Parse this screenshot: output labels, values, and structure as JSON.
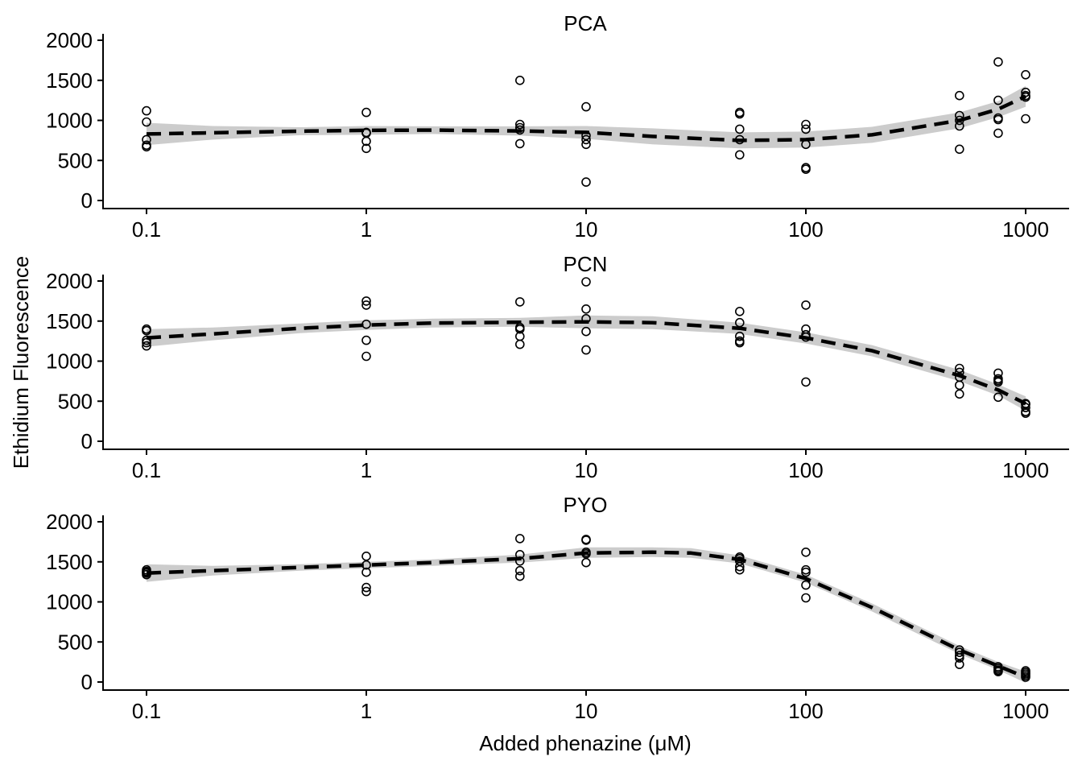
{
  "chart_data": {
    "type": "scatter",
    "xlabel": "Added phenazine (μM)",
    "ylabel": "Ethidium Fluorescence",
    "x_scale": "log10",
    "xlim": [
      0.1,
      1000
    ],
    "ylim": [
      0,
      2000
    ],
    "x_ticks": [
      "0.1",
      "1",
      "10",
      "100",
      "1000"
    ],
    "y_ticks": [
      "0",
      "500",
      "1000",
      "1500",
      "2000"
    ],
    "grid": false,
    "legend": "none",
    "colors": {
      "points": "#000000",
      "fit_line": "#000000",
      "ribbon": "#cccccc"
    },
    "panels": [
      {
        "title": "PCA",
        "points": [
          {
            "x": 0.1,
            "y": 1120
          },
          {
            "x": 0.1,
            "y": 980
          },
          {
            "x": 0.1,
            "y": 760
          },
          {
            "x": 0.1,
            "y": 690
          },
          {
            "x": 0.1,
            "y": 670
          },
          {
            "x": 1,
            "y": 1100
          },
          {
            "x": 1,
            "y": 850
          },
          {
            "x": 1,
            "y": 840
          },
          {
            "x": 1,
            "y": 740
          },
          {
            "x": 1,
            "y": 650
          },
          {
            "x": 5,
            "y": 1500
          },
          {
            "x": 5,
            "y": 950
          },
          {
            "x": 5,
            "y": 910
          },
          {
            "x": 5,
            "y": 880
          },
          {
            "x": 5,
            "y": 710
          },
          {
            "x": 10,
            "y": 1170
          },
          {
            "x": 10,
            "y": 810
          },
          {
            "x": 10,
            "y": 760
          },
          {
            "x": 10,
            "y": 700
          },
          {
            "x": 10,
            "y": 230
          },
          {
            "x": 50,
            "y": 1100
          },
          {
            "x": 50,
            "y": 1080
          },
          {
            "x": 50,
            "y": 890
          },
          {
            "x": 50,
            "y": 760
          },
          {
            "x": 50,
            "y": 570
          },
          {
            "x": 100,
            "y": 950
          },
          {
            "x": 100,
            "y": 890
          },
          {
            "x": 100,
            "y": 700
          },
          {
            "x": 100,
            "y": 410
          },
          {
            "x": 100,
            "y": 390
          },
          {
            "x": 500,
            "y": 1310
          },
          {
            "x": 500,
            "y": 1060
          },
          {
            "x": 500,
            "y": 1000
          },
          {
            "x": 500,
            "y": 930
          },
          {
            "x": 500,
            "y": 640
          },
          {
            "x": 750,
            "y": 1730
          },
          {
            "x": 750,
            "y": 1250
          },
          {
            "x": 750,
            "y": 1030
          },
          {
            "x": 750,
            "y": 1010
          },
          {
            "x": 750,
            "y": 840
          },
          {
            "x": 1000,
            "y": 1570
          },
          {
            "x": 1000,
            "y": 1350
          },
          {
            "x": 1000,
            "y": 1310
          },
          {
            "x": 1000,
            "y": 1290
          },
          {
            "x": 1000,
            "y": 1020
          }
        ],
        "fit": {
          "x": [
            0.1,
            0.2,
            0.5,
            1,
            2,
            5,
            10,
            20,
            50,
            100,
            200,
            500,
            750,
            1000
          ],
          "y": [
            830,
            845,
            865,
            875,
            878,
            868,
            850,
            800,
            750,
            760,
            820,
            1000,
            1140,
            1300
          ],
          "lower": [
            690,
            760,
            815,
            820,
            830,
            810,
            770,
            700,
            650,
            660,
            720,
            900,
            1040,
            1170
          ],
          "upper": [
            970,
            930,
            915,
            930,
            926,
            926,
            930,
            900,
            850,
            860,
            920,
            1100,
            1240,
            1430
          ]
        }
      },
      {
        "title": "PCN",
        "points": [
          {
            "x": 0.1,
            "y": 1400
          },
          {
            "x": 0.1,
            "y": 1380
          },
          {
            "x": 0.1,
            "y": 1260
          },
          {
            "x": 0.1,
            "y": 1230
          },
          {
            "x": 0.1,
            "y": 1190
          },
          {
            "x": 1,
            "y": 1750
          },
          {
            "x": 1,
            "y": 1700
          },
          {
            "x": 1,
            "y": 1460
          },
          {
            "x": 1,
            "y": 1260
          },
          {
            "x": 1,
            "y": 1060
          },
          {
            "x": 5,
            "y": 1740
          },
          {
            "x": 5,
            "y": 1420
          },
          {
            "x": 5,
            "y": 1400
          },
          {
            "x": 5,
            "y": 1310
          },
          {
            "x": 5,
            "y": 1210
          },
          {
            "x": 10,
            "y": 1990
          },
          {
            "x": 10,
            "y": 1650
          },
          {
            "x": 10,
            "y": 1530
          },
          {
            "x": 10,
            "y": 1370
          },
          {
            "x": 10,
            "y": 1140
          },
          {
            "x": 50,
            "y": 1620
          },
          {
            "x": 50,
            "y": 1480
          },
          {
            "x": 50,
            "y": 1310
          },
          {
            "x": 50,
            "y": 1250
          },
          {
            "x": 50,
            "y": 1230
          },
          {
            "x": 100,
            "y": 1700
          },
          {
            "x": 100,
            "y": 1400
          },
          {
            "x": 100,
            "y": 1330
          },
          {
            "x": 100,
            "y": 1300
          },
          {
            "x": 100,
            "y": 740
          },
          {
            "x": 500,
            "y": 910
          },
          {
            "x": 500,
            "y": 860
          },
          {
            "x": 500,
            "y": 800
          },
          {
            "x": 500,
            "y": 700
          },
          {
            "x": 500,
            "y": 590
          },
          {
            "x": 750,
            "y": 850
          },
          {
            "x": 750,
            "y": 780
          },
          {
            "x": 750,
            "y": 760
          },
          {
            "x": 750,
            "y": 740
          },
          {
            "x": 750,
            "y": 550
          },
          {
            "x": 1000,
            "y": 470
          },
          {
            "x": 1000,
            "y": 460
          },
          {
            "x": 1000,
            "y": 420
          },
          {
            "x": 1000,
            "y": 370
          },
          {
            "x": 1000,
            "y": 350
          }
        ],
        "fit": {
          "x": [
            0.1,
            0.2,
            0.5,
            1,
            2,
            5,
            10,
            20,
            50,
            100,
            200,
            500,
            750,
            1000
          ],
          "y": [
            1290,
            1340,
            1410,
            1450,
            1475,
            1485,
            1490,
            1480,
            1410,
            1290,
            1130,
            820,
            640,
            470
          ],
          "lower": [
            1180,
            1260,
            1350,
            1390,
            1420,
            1430,
            1410,
            1400,
            1340,
            1220,
            1060,
            750,
            570,
            380
          ],
          "upper": [
            1400,
            1420,
            1470,
            1510,
            1530,
            1540,
            1570,
            1560,
            1480,
            1360,
            1200,
            890,
            710,
            560
          ]
        }
      },
      {
        "title": "PYO",
        "points": [
          {
            "x": 0.1,
            "y": 1400
          },
          {
            "x": 0.1,
            "y": 1380
          },
          {
            "x": 0.1,
            "y": 1370
          },
          {
            "x": 0.1,
            "y": 1360
          },
          {
            "x": 0.1,
            "y": 1340
          },
          {
            "x": 1,
            "y": 1570
          },
          {
            "x": 1,
            "y": 1460
          },
          {
            "x": 1,
            "y": 1370
          },
          {
            "x": 1,
            "y": 1180
          },
          {
            "x": 1,
            "y": 1130
          },
          {
            "x": 5,
            "y": 1790
          },
          {
            "x": 5,
            "y": 1590
          },
          {
            "x": 5,
            "y": 1510
          },
          {
            "x": 5,
            "y": 1390
          },
          {
            "x": 5,
            "y": 1320
          },
          {
            "x": 10,
            "y": 1780
          },
          {
            "x": 10,
            "y": 1770
          },
          {
            "x": 10,
            "y": 1620
          },
          {
            "x": 10,
            "y": 1600
          },
          {
            "x": 10,
            "y": 1490
          },
          {
            "x": 50,
            "y": 1560
          },
          {
            "x": 50,
            "y": 1540
          },
          {
            "x": 50,
            "y": 1510
          },
          {
            "x": 50,
            "y": 1440
          },
          {
            "x": 50,
            "y": 1400
          },
          {
            "x": 100,
            "y": 1620
          },
          {
            "x": 100,
            "y": 1400
          },
          {
            "x": 100,
            "y": 1370
          },
          {
            "x": 100,
            "y": 1210
          },
          {
            "x": 100,
            "y": 1050
          },
          {
            "x": 500,
            "y": 400
          },
          {
            "x": 500,
            "y": 370
          },
          {
            "x": 500,
            "y": 330
          },
          {
            "x": 500,
            "y": 300
          },
          {
            "x": 500,
            "y": 220
          },
          {
            "x": 750,
            "y": 190
          },
          {
            "x": 750,
            "y": 170
          },
          {
            "x": 750,
            "y": 150
          },
          {
            "x": 750,
            "y": 140
          },
          {
            "x": 750,
            "y": 130
          },
          {
            "x": 1000,
            "y": 140
          },
          {
            "x": 1000,
            "y": 120
          },
          {
            "x": 1000,
            "y": 100
          },
          {
            "x": 1000,
            "y": 80
          },
          {
            "x": 1000,
            "y": 60
          }
        ],
        "fit": {
          "x": [
            0.1,
            0.2,
            0.5,
            1,
            2,
            5,
            10,
            20,
            30,
            50,
            100,
            200,
            500,
            750,
            1000
          ],
          "y": [
            1360,
            1390,
            1430,
            1460,
            1490,
            1540,
            1610,
            1620,
            1610,
            1530,
            1290,
            930,
            400,
            200,
            60
          ],
          "lower": [
            1250,
            1330,
            1390,
            1420,
            1450,
            1490,
            1550,
            1560,
            1550,
            1480,
            1240,
            880,
            350,
            150,
            -10
          ],
          "upper": [
            1470,
            1450,
            1470,
            1500,
            1530,
            1590,
            1680,
            1680,
            1670,
            1580,
            1340,
            980,
            450,
            250,
            130
          ]
        }
      }
    ]
  }
}
